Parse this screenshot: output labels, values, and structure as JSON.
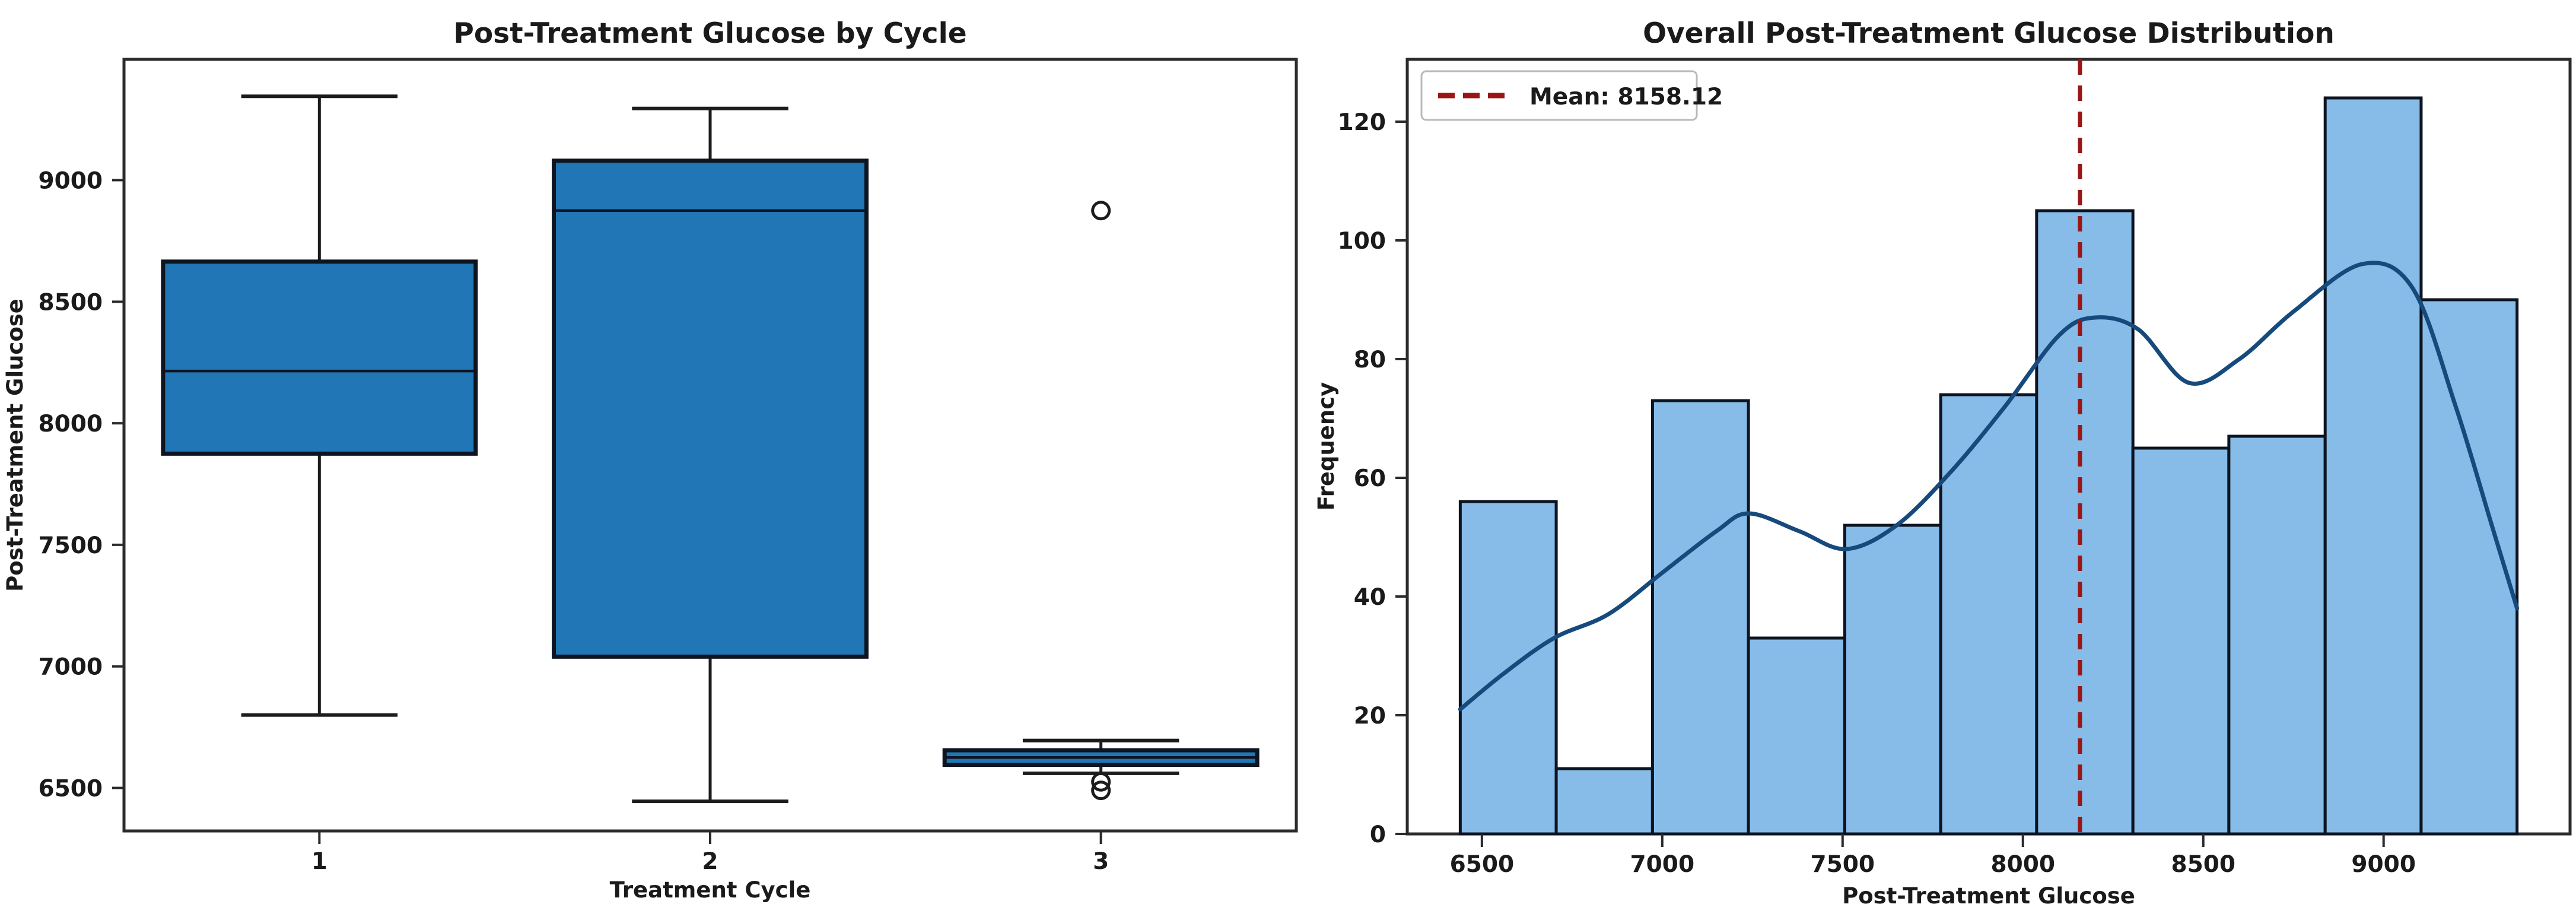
{
  "figure": {
    "background": "#ffffff",
    "text_color": "#1a1a1a",
    "spine_color": "#2b2b2b"
  },
  "chart_data": [
    {
      "type": "box",
      "title": "Post-Treatment Glucose by Cycle",
      "xlabel": "Treatment Cycle",
      "ylabel": "Post-Treatment Glucose",
      "categories": [
        "1",
        "2",
        "3"
      ],
      "ylim": [
        6323,
        9497
      ],
      "yticks": [
        6500,
        7000,
        7500,
        8000,
        8500,
        9000
      ],
      "grid": false,
      "boxes": [
        {
          "category": "1",
          "whisker_low": 6800,
          "q1": 7875,
          "median": 8215,
          "q3": 8665,
          "whisker_high": 9345,
          "outliers": []
        },
        {
          "category": "2",
          "whisker_low": 6445,
          "q1": 7040,
          "median": 8875,
          "q3": 9080,
          "whisker_high": 9295,
          "outliers": []
        },
        {
          "category": "3",
          "whisker_low": 6560,
          "q1": 6595,
          "median": 6625,
          "q3": 6655,
          "whisker_high": 6695,
          "outliers": [
            8875,
            6525,
            6490
          ]
        }
      ],
      "colors": {
        "box_fill": "#2176b5",
        "box_edge": "#0e1420",
        "whisker": "#1c1c1c",
        "median": "#0e1420"
      }
    },
    {
      "type": "histogram",
      "title": "Overall Post-Treatment Glucose Distribution",
      "xlabel": "Post-Treatment Glucose",
      "ylabel": "Frequency",
      "xlim": [
        6293,
        9517
      ],
      "ylim": [
        0,
        130.5
      ],
      "xticks": [
        6500,
        7000,
        7500,
        8000,
        8500,
        9000
      ],
      "yticks": [
        0,
        20,
        40,
        60,
        80,
        100,
        120
      ],
      "grid": false,
      "bin_edges": [
        6440,
        6706,
        6973,
        7239,
        7506,
        7772,
        8038,
        8305,
        8571,
        8838,
        9104,
        9370
      ],
      "frequencies": [
        56,
        11,
        73,
        33,
        52,
        74,
        105,
        65,
        67,
        124,
        90
      ],
      "mean": 8158.12,
      "legend": {
        "label": "Mean: 8158.12",
        "position": "upper left"
      },
      "kde_points": [
        [
          6440,
          21
        ],
        [
          6560,
          27
        ],
        [
          6700,
          33
        ],
        [
          6850,
          37
        ],
        [
          7000,
          44
        ],
        [
          7150,
          51
        ],
        [
          7240,
          54
        ],
        [
          7380,
          51
        ],
        [
          7510,
          48
        ],
        [
          7650,
          52
        ],
        [
          7800,
          61
        ],
        [
          7950,
          72
        ],
        [
          8100,
          84
        ],
        [
          8200,
          87
        ],
        [
          8320,
          85
        ],
        [
          8460,
          76
        ],
        [
          8600,
          80
        ],
        [
          8750,
          88
        ],
        [
          8940,
          96
        ],
        [
          9080,
          92
        ],
        [
          9200,
          72
        ],
        [
          9300,
          52
        ],
        [
          9370,
          38
        ]
      ],
      "colors": {
        "bar_fill": "#87bce9",
        "bar_edge": "#0d1420",
        "kde_line": "#164a7c",
        "mean_line": "#9c1515"
      }
    }
  ]
}
